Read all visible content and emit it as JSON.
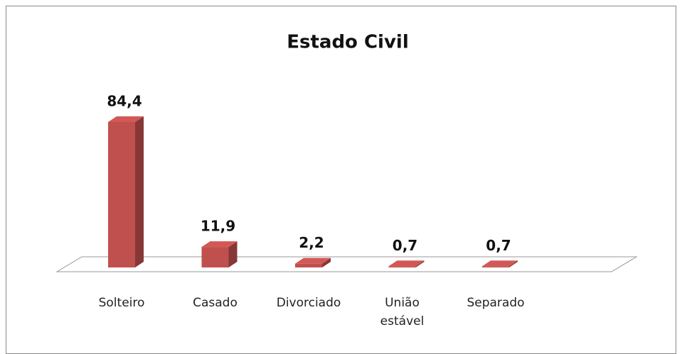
{
  "chart_data": {
    "type": "bar3d",
    "title": "Estado Civil",
    "categories": [
      "Solteiro",
      "Casado",
      "Divorciado",
      "União estável",
      "Separado"
    ],
    "values": [
      84.4,
      11.9,
      2.2,
      0.7,
      0.7
    ],
    "value_labels": [
      "84,4",
      "11,9",
      "2,2",
      "0,7",
      "0,7"
    ],
    "color": "#c0504d"
  }
}
